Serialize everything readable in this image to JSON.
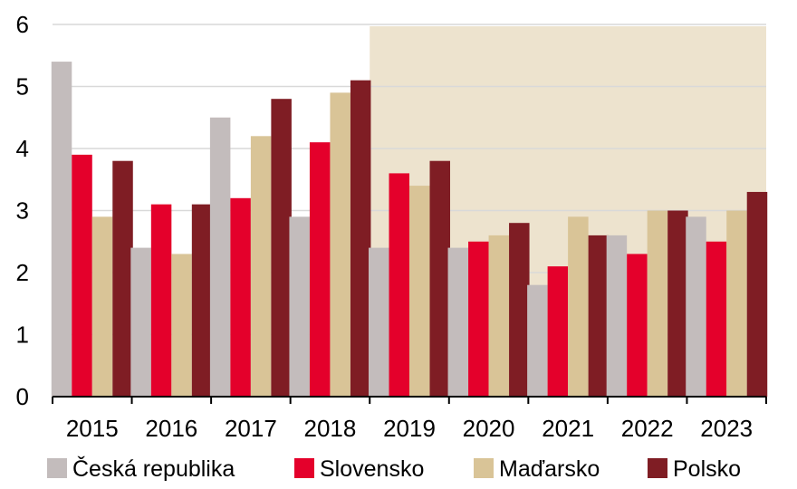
{
  "chart_data": {
    "type": "bar",
    "title": "",
    "xlabel": "",
    "ylabel": "",
    "ylim": [
      0,
      6
    ],
    "yticks": [
      "0",
      "1",
      "2",
      "3",
      "4",
      "5",
      "6"
    ],
    "grid": true,
    "legend_position": "bottom",
    "forecast_shading_from": "2019",
    "forecast_shading_color": "#ede3ce",
    "categories": [
      "2015",
      "2016",
      "2017",
      "2018",
      "2019",
      "2020",
      "2021",
      "2022",
      "2023"
    ],
    "series": [
      {
        "name": "Česká republika",
        "color": "#c3bcbc",
        "values": [
          5.4,
          2.4,
          4.5,
          2.9,
          2.4,
          2.4,
          1.8,
          2.6,
          2.9
        ]
      },
      {
        "name": "Slovensko",
        "color": "#e4002b",
        "values": [
          3.9,
          3.1,
          3.2,
          4.1,
          3.6,
          2.5,
          2.1,
          2.3,
          2.5
        ]
      },
      {
        "name": "Maďarsko",
        "color": "#d9c497",
        "values": [
          2.9,
          2.3,
          4.2,
          4.9,
          3.4,
          2.6,
          2.9,
          3.0,
          3.0
        ]
      },
      {
        "name": "Polsko",
        "color": "#7f1d24",
        "values": [
          3.8,
          3.1,
          4.8,
          5.1,
          3.8,
          2.8,
          2.6,
          3.0,
          3.3
        ]
      }
    ]
  }
}
